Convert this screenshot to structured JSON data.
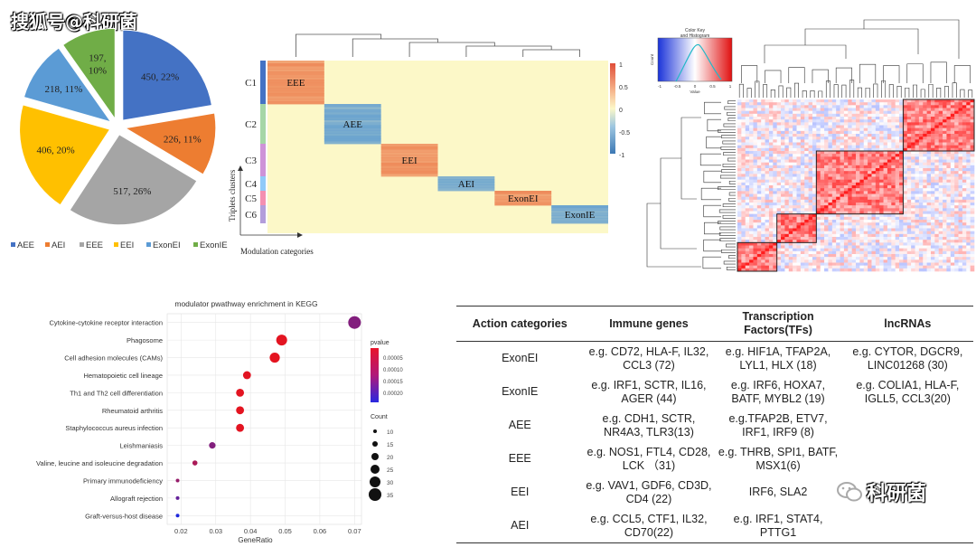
{
  "watermark": {
    "top": "搜狐号@科研菌",
    "bottom": "科研菌"
  },
  "chart_data": [
    {
      "type": "pie",
      "categories": [
        "AEE",
        "AEI",
        "EEE",
        "EEI",
        "ExonEI",
        "ExonIE"
      ],
      "values": [
        450,
        226,
        517,
        406,
        218,
        197
      ],
      "labels": [
        "450, 22%",
        "226, 11%",
        "517, 26%",
        "406, 20%",
        "218, 11%",
        "197,\n10%"
      ],
      "colors": [
        "#4472C4",
        "#ED7D31",
        "#A5A5A5",
        "#FFC000",
        "#5B9BD5",
        "#70AD47"
      ],
      "legend_position": "bottom"
    },
    {
      "type": "heatmap",
      "title": "",
      "xlabel": "Modulation categories",
      "ylabel": "Triplets clusters",
      "rows": [
        "C1",
        "C2",
        "C3",
        "C4",
        "C5",
        "C6"
      ],
      "columns": [
        "EEE",
        "AEE",
        "EEI",
        "AEI",
        "ExonEI",
        "ExonIE"
      ],
      "blocks": [
        {
          "row": "C1",
          "column": "EEE",
          "label": "EEE",
          "color": "#EE8A5A"
        },
        {
          "row": "C2",
          "column": "AEE",
          "label": "AEE",
          "color": "#6AA3CF"
        },
        {
          "row": "C3",
          "column": "EEI",
          "label": "EEI",
          "color": "#EE8A5A"
        },
        {
          "row": "C4",
          "column": "AEI",
          "label": "AEI",
          "color": "#6AA3CF"
        },
        {
          "row": "C5",
          "column": "ExonEI",
          "label": "ExonEI",
          "color": "#EE8A5A"
        },
        {
          "row": "C6",
          "column": "ExonIE",
          "label": "ExonIE",
          "color": "#6AA3CF"
        }
      ],
      "colorbar_ticks": [
        "1",
        "0.5",
        "0",
        "-0.5",
        "-1"
      ],
      "background": "#FCF8C8"
    },
    {
      "type": "heatmap",
      "title": "Color Key and Histogram",
      "colorbar_ticks": [
        "-1",
        "-0.5",
        "0",
        "0.5",
        "1"
      ],
      "colorbar_xlabel": "Value",
      "colorbar_ylabel": "Count",
      "diagonal_blocks": 4
    },
    {
      "type": "scatter",
      "title": "modulator pwathway enrichment in KEGG",
      "xlabel": "GeneRatio",
      "x_ticks": [
        0.02,
        0.03,
        0.04,
        0.05,
        0.06,
        0.07
      ],
      "xlim": [
        0.016,
        0.072
      ],
      "categories": [
        "Cytokine-cytokine receptor interaction",
        "Phagosome",
        "Cell adhesion molecules (CAMs)",
        "Hematopoietic cell lineage",
        "Th1 and Th2 cell differentiation",
        "Rheumatoid arthritis",
        "Staphylococcus aureus infection",
        "Leishmaniasis",
        "Valine, leucine and isoleucine degradation",
        "Primary immunodeficiency",
        "Allograft rejection",
        "Graft-versus-host disease"
      ],
      "x": [
        0.07,
        0.049,
        0.047,
        0.039,
        0.037,
        0.037,
        0.037,
        0.029,
        0.024,
        0.019,
        0.019,
        0.019
      ],
      "count": [
        35,
        30,
        28,
        22,
        22,
        22,
        22,
        18,
        14,
        10,
        10,
        10
      ],
      "pvalue": [
        0.0001,
        3e-06,
        2e-06,
        4e-06,
        3e-06,
        2e-06,
        3e-06,
        0.0001,
        6e-05,
        8e-05,
        0.00013,
        0.0002
      ],
      "legend": {
        "color_title": "pvalue",
        "color_ticks": [
          "0.00005",
          "0.00010",
          "0.00015",
          "0.00020"
        ],
        "size_title": "Count",
        "size_ticks": [
          10,
          15,
          20,
          25,
          30,
          35
        ]
      }
    },
    {
      "type": "table",
      "columns": [
        "Action categories",
        "Immune genes",
        "Transcription Factors(TFs)",
        "lncRNAs"
      ],
      "rows": [
        [
          "ExonEI",
          "e.g. CD72, HLA-F, IL32, CCL3 (72)",
          "e.g. HIF1A, TFAP2A, LYL1, HLX (18)",
          "e.g. CYTOR, DGCR9, LINC01268 (30)"
        ],
        [
          "ExonIE",
          "e.g. IRF1, SCTR, IL16, AGER (44)",
          "e.g. IRF6, HOXA7, BATF, MYBL2 (19)",
          "e.g. COLIA1, HLA-F, IGLL5, CCL3(20)"
        ],
        [
          "AEE",
          "e.g. CDH1, SCTR, NR4A3, TLR3(13)",
          "e.g.TFAP2B, ETV7, IRF1, IRF9 (8)",
          ""
        ],
        [
          "EEE",
          "e.g. NOS1, FTL4, CD28, LCK （31)",
          "e.g. THRB, SPI1, BATF, MSX1(6)",
          ""
        ],
        [
          "EEI",
          "e.g. VAV1, GDF6, CD3D, CD4 (22)",
          "IRF6, SLA2",
          ""
        ],
        [
          "AEI",
          "e.g. CCL5, CTF1, IL32, CD70(22)",
          "e.g. IRF1, STAT4, PTTG1",
          ""
        ]
      ]
    }
  ]
}
